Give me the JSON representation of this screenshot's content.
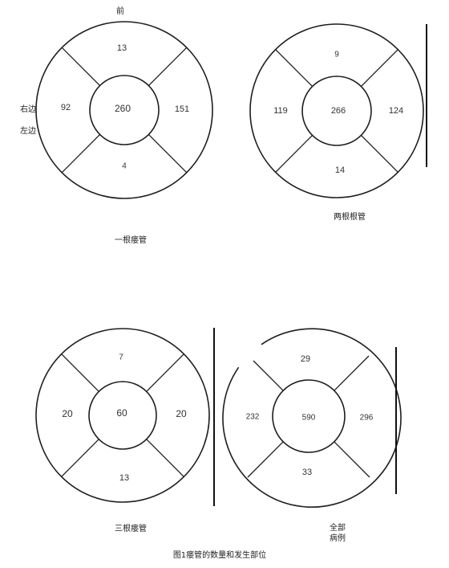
{
  "orientation": {
    "front": "前",
    "right_side": "右边",
    "left_side": "左边"
  },
  "diagrams": [
    {
      "caption": "一根瘘管",
      "top": "13",
      "center": "260",
      "left": "92",
      "right": "151",
      "bottom": "4"
    },
    {
      "caption": "两根根管",
      "top": "9",
      "center": "266",
      "left": "119",
      "right": "124",
      "bottom": "14"
    },
    {
      "caption": "三根瘘管",
      "top": "7",
      "center": "60",
      "left": "20",
      "right": "20",
      "bottom": "13"
    },
    {
      "caption_line1": "全部",
      "caption_line2": "病例",
      "top": "29",
      "center": "590",
      "left": "232",
      "right": "296",
      "bottom": "33"
    }
  ],
  "figure_caption": "图1瘘管的数量和发生部位"
}
